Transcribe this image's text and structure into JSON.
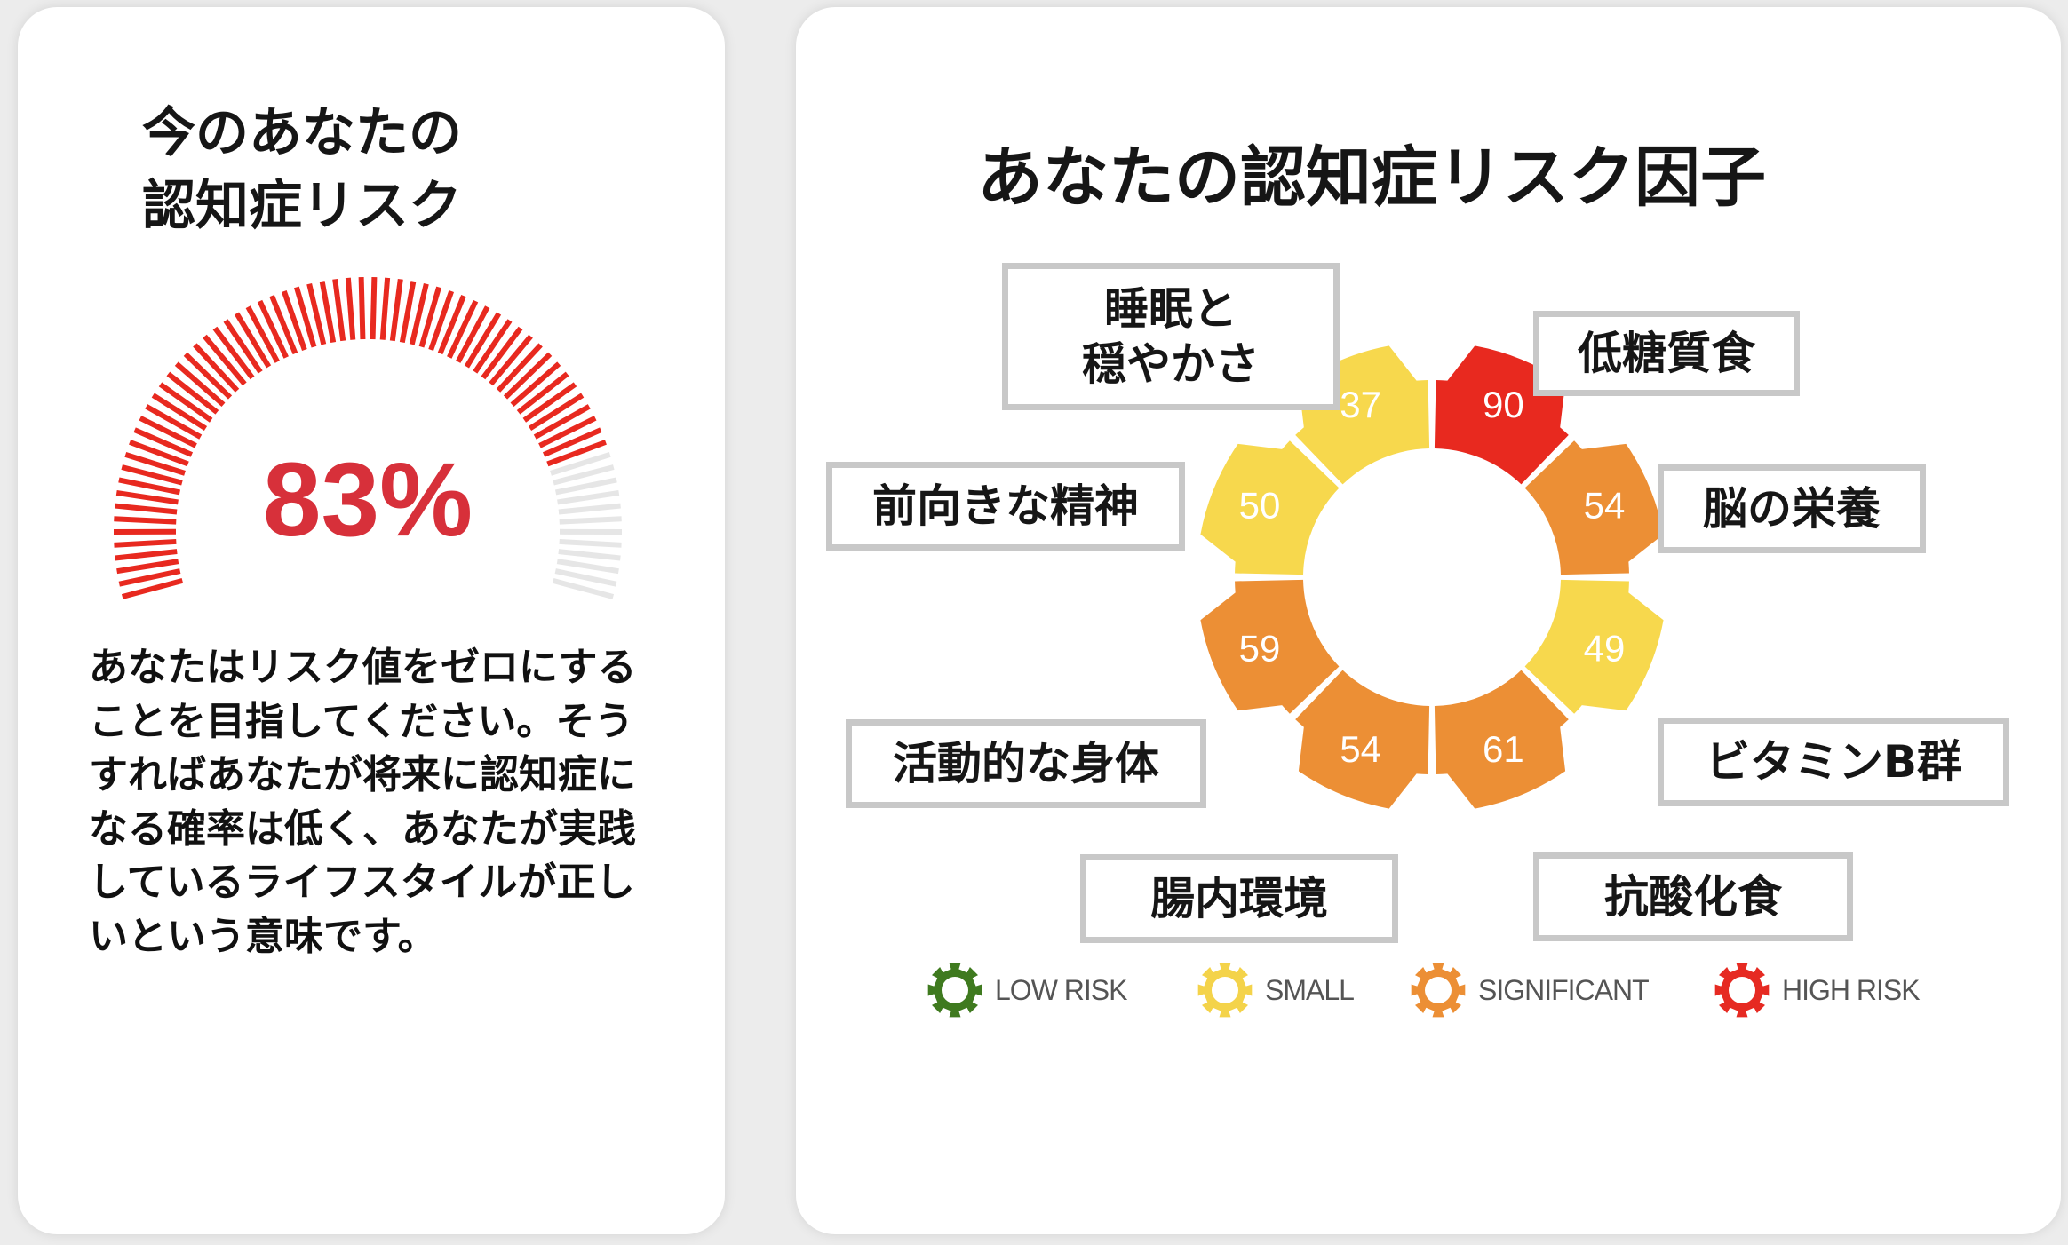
{
  "left_card": {
    "title_line1": "今のあなたの",
    "title_line2": "認知症リスク",
    "gauge": {
      "percent_label": "83%",
      "value": 83,
      "active_color": "#e8291f",
      "inactive_color": "#e6e6e6",
      "text_color": "#d7303a"
    },
    "description": "あなたはリスク値をゼロにすることを目指してください。そうすればあなたが将来に認知症になる確率は低く、あなたが実践しているライフスタイルが正しいという意味です。"
  },
  "right_card": {
    "title": "あなたの認知症リスク因子",
    "legend": [
      {
        "label": "LOW RISK",
        "color": "#3f7a1f"
      },
      {
        "label": "SMALL",
        "color": "#f4d34a"
      },
      {
        "label": "SIGNIFICANT",
        "color": "#ec8f35"
      },
      {
        "label": "HIGH RISK",
        "color": "#e62a22"
      }
    ]
  },
  "chart_data": {
    "type": "radial_segments",
    "title": "あなたの認知症リスク因子",
    "segments": [
      {
        "label": "低糖質食",
        "value": 90,
        "risk": "HIGH RISK",
        "color": "#e8291f"
      },
      {
        "label": "脳の栄養",
        "value": 54,
        "risk": "SIGNIFICANT",
        "color": "#ec8f35"
      },
      {
        "label": "ビタミンB群",
        "value": 49,
        "risk": "SMALL",
        "color": "#f7d84d"
      },
      {
        "label": "抗酸化食",
        "value": 61,
        "risk": "SIGNIFICANT",
        "color": "#ec8f35"
      },
      {
        "label": "腸内環境",
        "value": 54,
        "risk": "SIGNIFICANT",
        "color": "#ec8f35"
      },
      {
        "label": "活動的な身体",
        "value": 59,
        "risk": "SIGNIFICANT",
        "color": "#ec8f35"
      },
      {
        "label": "前向きな精神",
        "value": 50,
        "risk": "SMALL",
        "color": "#f7d84d"
      },
      {
        "label": "睡眠と\n穏やかさ",
        "value": 37,
        "risk": "SMALL",
        "color": "#f7d84d"
      }
    ]
  }
}
